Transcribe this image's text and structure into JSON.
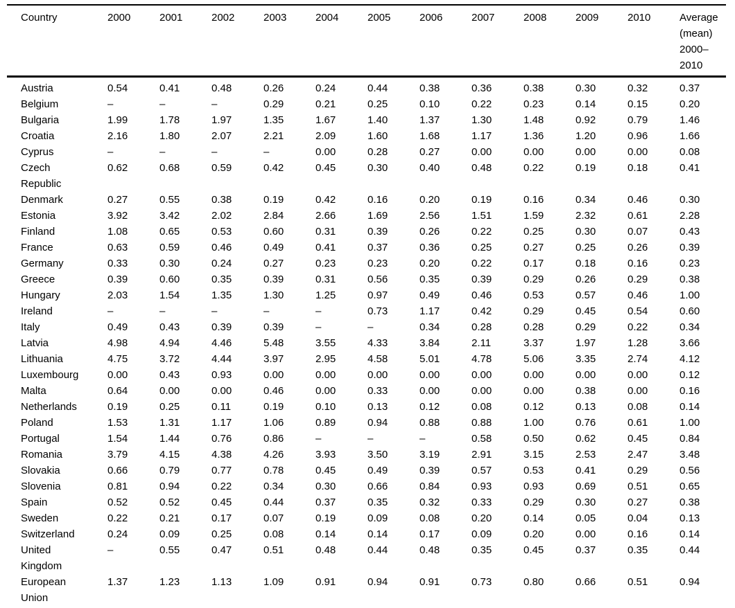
{
  "table": {
    "columns": [
      "Country",
      "2000",
      "2001",
      "2002",
      "2003",
      "2004",
      "2005",
      "2006",
      "2007",
      "2008",
      "2009",
      "2010",
      "Average (mean) 2000–2010"
    ],
    "missing_marker": "–",
    "rows": [
      {
        "country": "Austria",
        "values": [
          "0.54",
          "0.41",
          "0.48",
          "0.26",
          "0.24",
          "0.44",
          "0.38",
          "0.36",
          "0.38",
          "0.30",
          "0.32",
          "0.37"
        ]
      },
      {
        "country": "Belgium",
        "values": [
          "–",
          "–",
          "–",
          "0.29",
          "0.21",
          "0.25",
          "0.10",
          "0.22",
          "0.23",
          "0.14",
          "0.15",
          "0.20"
        ]
      },
      {
        "country": "Bulgaria",
        "values": [
          "1.99",
          "1.78",
          "1.97",
          "1.35",
          "1.67",
          "1.40",
          "1.37",
          "1.30",
          "1.48",
          "0.92",
          "0.79",
          "1.46"
        ]
      },
      {
        "country": "Croatia",
        "values": [
          "2.16",
          "1.80",
          "2.07",
          "2.21",
          "2.09",
          "1.60",
          "1.68",
          "1.17",
          "1.36",
          "1.20",
          "0.96",
          "1.66"
        ]
      },
      {
        "country": "Cyprus",
        "values": [
          "–",
          "–",
          "–",
          "–",
          "0.00",
          "0.28",
          "0.27",
          "0.00",
          "0.00",
          "0.00",
          "0.00",
          "0.08"
        ]
      },
      {
        "country": "Czech Republic",
        "values": [
          "0.62",
          "0.68",
          "0.59",
          "0.42",
          "0.45",
          "0.30",
          "0.40",
          "0.48",
          "0.22",
          "0.19",
          "0.18",
          "0.41"
        ]
      },
      {
        "country": "Denmark",
        "values": [
          "0.27",
          "0.55",
          "0.38",
          "0.19",
          "0.42",
          "0.16",
          "0.20",
          "0.19",
          "0.16",
          "0.34",
          "0.46",
          "0.30"
        ]
      },
      {
        "country": "Estonia",
        "values": [
          "3.92",
          "3.42",
          "2.02",
          "2.84",
          "2.66",
          "1.69",
          "2.56",
          "1.51",
          "1.59",
          "2.32",
          "0.61",
          "2.28"
        ]
      },
      {
        "country": "Finland",
        "values": [
          "1.08",
          "0.65",
          "0.53",
          "0.60",
          "0.31",
          "0.39",
          "0.26",
          "0.22",
          "0.25",
          "0.30",
          "0.07",
          "0.43"
        ]
      },
      {
        "country": "France",
        "values": [
          "0.63",
          "0.59",
          "0.46",
          "0.49",
          "0.41",
          "0.37",
          "0.36",
          "0.25",
          "0.27",
          "0.25",
          "0.26",
          "0.39"
        ]
      },
      {
        "country": "Germany",
        "values": [
          "0.33",
          "0.30",
          "0.24",
          "0.27",
          "0.23",
          "0.23",
          "0.20",
          "0.22",
          "0.17",
          "0.18",
          "0.16",
          "0.23"
        ]
      },
      {
        "country": "Greece",
        "values": [
          "0.39",
          "0.60",
          "0.35",
          "0.39",
          "0.31",
          "0.56",
          "0.35",
          "0.39",
          "0.29",
          "0.26",
          "0.29",
          "0.38"
        ]
      },
      {
        "country": "Hungary",
        "values": [
          "2.03",
          "1.54",
          "1.35",
          "1.30",
          "1.25",
          "0.97",
          "0.49",
          "0.46",
          "0.53",
          "0.57",
          "0.46",
          "1.00"
        ]
      },
      {
        "country": "Ireland",
        "values": [
          "–",
          "–",
          "–",
          "–",
          "–",
          "0.73",
          "1.17",
          "0.42",
          "0.29",
          "0.45",
          "0.54",
          "0.60"
        ]
      },
      {
        "country": "Italy",
        "values": [
          "0.49",
          "0.43",
          "0.39",
          "0.39",
          "–",
          "–",
          "0.34",
          "0.28",
          "0.28",
          "0.29",
          "0.22",
          "0.34"
        ]
      },
      {
        "country": "Latvia",
        "values": [
          "4.98",
          "4.94",
          "4.46",
          "5.48",
          "3.55",
          "4.33",
          "3.84",
          "2.11",
          "3.37",
          "1.97",
          "1.28",
          "3.66"
        ]
      },
      {
        "country": "Lithuania",
        "values": [
          "4.75",
          "3.72",
          "4.44",
          "3.97",
          "2.95",
          "4.58",
          "5.01",
          "4.78",
          "5.06",
          "3.35",
          "2.74",
          "4.12"
        ]
      },
      {
        "country": "Luxembourg",
        "values": [
          "0.00",
          "0.43",
          "0.93",
          "0.00",
          "0.00",
          "0.00",
          "0.00",
          "0.00",
          "0.00",
          "0.00",
          "0.00",
          "0.12"
        ]
      },
      {
        "country": "Malta",
        "values": [
          "0.64",
          "0.00",
          "0.00",
          "0.46",
          "0.00",
          "0.33",
          "0.00",
          "0.00",
          "0.00",
          "0.38",
          "0.00",
          "0.16"
        ]
      },
      {
        "country": "Netherlands",
        "values": [
          "0.19",
          "0.25",
          "0.11",
          "0.19",
          "0.10",
          "0.13",
          "0.12",
          "0.08",
          "0.12",
          "0.13",
          "0.08",
          "0.14"
        ]
      },
      {
        "country": "Poland",
        "values": [
          "1.53",
          "1.31",
          "1.17",
          "1.06",
          "0.89",
          "0.94",
          "0.88",
          "0.88",
          "1.00",
          "0.76",
          "0.61",
          "1.00"
        ]
      },
      {
        "country": "Portugal",
        "values": [
          "1.54",
          "1.44",
          "0.76",
          "0.86",
          "–",
          "–",
          "–",
          "0.58",
          "0.50",
          "0.62",
          "0.45",
          "0.84"
        ]
      },
      {
        "country": "Romania",
        "values": [
          "3.79",
          "4.15",
          "4.38",
          "4.26",
          "3.93",
          "3.50",
          "3.19",
          "2.91",
          "3.15",
          "2.53",
          "2.47",
          "3.48"
        ]
      },
      {
        "country": "Slovakia",
        "values": [
          "0.66",
          "0.79",
          "0.77",
          "0.78",
          "0.45",
          "0.49",
          "0.39",
          "0.57",
          "0.53",
          "0.41",
          "0.29",
          "0.56"
        ]
      },
      {
        "country": "Slovenia",
        "values": [
          "0.81",
          "0.94",
          "0.22",
          "0.34",
          "0.30",
          "0.66",
          "0.84",
          "0.93",
          "0.93",
          "0.69",
          "0.51",
          "0.65"
        ]
      },
      {
        "country": "Spain",
        "values": [
          "0.52",
          "0.52",
          "0.45",
          "0.44",
          "0.37",
          "0.35",
          "0.32",
          "0.33",
          "0.29",
          "0.30",
          "0.27",
          "0.38"
        ]
      },
      {
        "country": "Sweden",
        "values": [
          "0.22",
          "0.21",
          "0.17",
          "0.07",
          "0.19",
          "0.09",
          "0.08",
          "0.20",
          "0.14",
          "0.05",
          "0.04",
          "0.13"
        ]
      },
      {
        "country": "Switzerland",
        "values": [
          "0.24",
          "0.09",
          "0.25",
          "0.08",
          "0.14",
          "0.14",
          "0.17",
          "0.09",
          "0.20",
          "0.00",
          "0.16",
          "0.14"
        ]
      },
      {
        "country": "United Kingdom",
        "values": [
          "–",
          "0.55",
          "0.47",
          "0.51",
          "0.48",
          "0.44",
          "0.48",
          "0.35",
          "0.45",
          "0.37",
          "0.35",
          "0.44"
        ]
      },
      {
        "country": "European Union",
        "values": [
          "1.37",
          "1.23",
          "1.13",
          "1.09",
          "0.91",
          "0.94",
          "0.91",
          "0.73",
          "0.80",
          "0.66",
          "0.51",
          "0.94"
        ]
      }
    ]
  },
  "colors": {
    "rule": "#000000",
    "text": "#000000",
    "background": "#ffffff"
  }
}
